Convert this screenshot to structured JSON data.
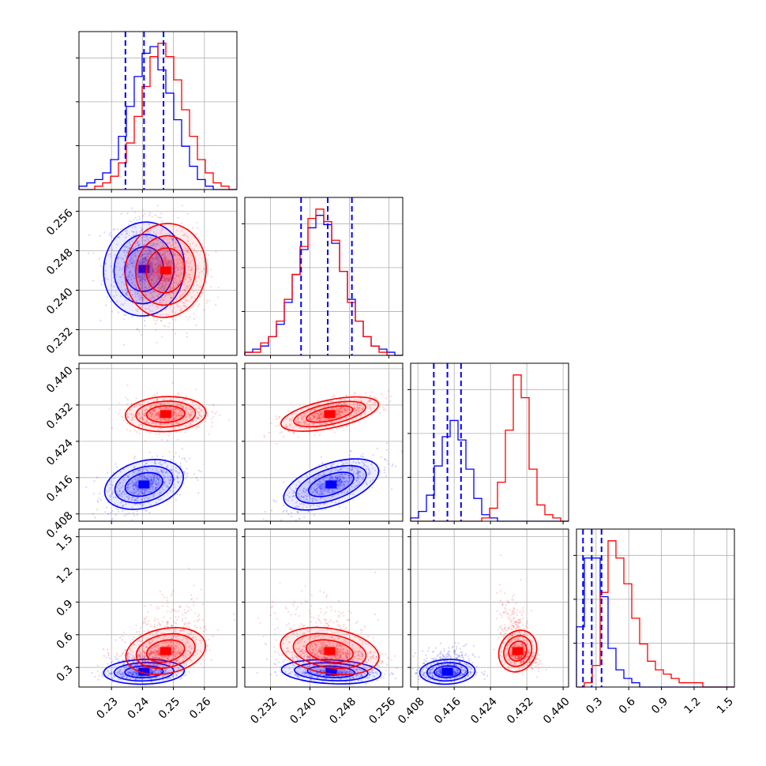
{
  "chart_data": {
    "type": "corner",
    "title": "",
    "n_params": 4,
    "grid": true,
    "colors": {
      "blue": "#0000ff",
      "red": "#ff0000"
    },
    "series": [
      {
        "color": "#0000ff",
        "mean": [
          0.2405,
          0.2443,
          0.4145,
          0.26
        ],
        "std": [
          0.0062,
          0.0048,
          0.0029,
          0.08
        ]
      },
      {
        "color": "#ff0000",
        "mean": [
          0.2475,
          0.244,
          0.43,
          0.45
        ],
        "std": [
          0.0062,
          0.0048,
          0.0019,
          0.16
        ]
      }
    ],
    "quantile_lines": [
      [
        0.2345,
        0.2405,
        0.2468
      ],
      [
        0.2382,
        0.2436,
        0.2485
      ],
      [
        0.4115,
        0.4145,
        0.4175
      ],
      [
        0.18,
        0.26,
        0.35
      ]
    ],
    "ranges": [
      [
        0.2195,
        0.2705
      ],
      [
        0.2268,
        0.2588
      ],
      [
        0.4064,
        0.4412
      ],
      [
        0.12,
        1.57
      ]
    ],
    "ticks": [
      {
        "values": [
          0.23,
          0.24,
          0.25,
          0.26
        ],
        "labels": [
          "0.23",
          "0.24",
          "0.25",
          "0.26"
        ]
      },
      {
        "values": [
          0.232,
          0.24,
          0.248,
          0.256
        ],
        "labels": [
          "0.232",
          "0.240",
          "0.248",
          "0.256"
        ]
      },
      {
        "values": [
          0.408,
          0.416,
          0.424,
          0.432,
          0.44
        ],
        "labels": [
          "0.408",
          "0.416",
          "0.424",
          "0.432",
          "0.440"
        ]
      },
      {
        "values": [
          0.3,
          0.6,
          0.9,
          1.2,
          1.5
        ],
        "labels": [
          "0.3",
          "0.6",
          "0.9",
          "1.2",
          "1.5"
        ]
      }
    ],
    "histograms": [
      {
        "blue": [
          1,
          2,
          3,
          5,
          9,
          16,
          25,
          34,
          41,
          43,
          36,
          29,
          21,
          13,
          7,
          3,
          1,
          0,
          0,
          0
        ],
        "red": [
          0,
          0,
          1,
          2,
          4,
          8,
          14,
          22,
          31,
          40,
          44,
          40,
          33,
          24,
          16,
          9,
          5,
          2,
          1,
          0
        ]
      },
      {
        "blue": [
          1,
          2,
          3,
          6,
          10,
          17,
          26,
          34,
          41,
          45,
          42,
          36,
          27,
          18,
          11,
          6,
          3,
          2,
          1,
          0
        ],
        "red": [
          1,
          1,
          4,
          6,
          11,
          18,
          26,
          35,
          44,
          47,
          43,
          37,
          27,
          17,
          11,
          6,
          3,
          1,
          0,
          0
        ]
      },
      {
        "blue": [
          1,
          3,
          8,
          17,
          26,
          31,
          25,
          16,
          7,
          2,
          1,
          0,
          0,
          0,
          0,
          0,
          0,
          0,
          0,
          0
        ],
        "red": [
          0,
          0,
          0,
          0,
          0,
          0,
          0,
          0,
          0,
          1,
          4,
          12,
          28,
          45,
          38,
          16,
          5,
          2,
          1,
          0
        ]
      },
      {
        "blue": [
          14,
          30,
          30,
          21,
          9,
          4,
          2,
          1,
          0,
          0,
          0,
          0,
          0,
          0,
          0,
          0,
          0,
          0,
          0,
          0
        ],
        "red": [
          0,
          1,
          5,
          22,
          34,
          30,
          24,
          16,
          10,
          6,
          4,
          3,
          2,
          1,
          1,
          1,
          0,
          0,
          0,
          0
        ]
      }
    ],
    "correlations": {
      "blue": {
        "1-0": -0.15,
        "2-0": 0.45,
        "2-1": 0.7,
        "3-0": 0.1,
        "3-1": -0.2,
        "3-2": 0.1
      },
      "red": {
        "1-0": -0.15,
        "2-0": 0.1,
        "2-1": 0.65,
        "3-0": 0.35,
        "3-1": -0.35,
        "3-2": -0.45
      }
    }
  }
}
